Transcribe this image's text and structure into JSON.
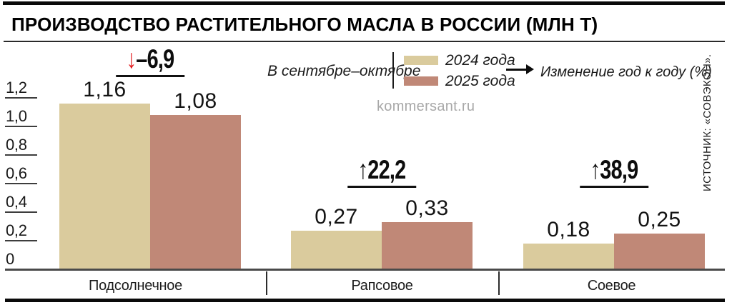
{
  "title": "ПРОИЗВОДСТВО РАСТИТЕЛЬНОГО МАСЛА В РОССИИ (МЛН Т)",
  "watermark": "kommersant.ru",
  "source": "ИСТОЧНИК: «СОВЭКОН».",
  "legend": {
    "period": "В сентябре–октябре",
    "series": [
      {
        "label": "2024 года",
        "color": "#dacb9d"
      },
      {
        "label": "2025 года",
        "color": "#c08877"
      }
    ],
    "change_note": "Изменение год к году (%)"
  },
  "chart_data": {
    "type": "bar",
    "title": "ПРОИЗВОДСТВО РАСТИТЕЛЬНОГО МАСЛА В РОССИИ (МЛН Т)",
    "subtitle": "В сентябре–октябре",
    "unit": "млн т",
    "categories": [
      "Подсолнечное",
      "Рапсовое",
      "Соевое"
    ],
    "series": [
      {
        "name": "2024 года",
        "color": "#dacb9d",
        "values": [
          1.16,
          0.27,
          0.18
        ],
        "labels": [
          "1,16",
          "0,27",
          "0,18"
        ]
      },
      {
        "name": "2025 года",
        "color": "#c08877",
        "values": [
          1.08,
          0.33,
          0.25
        ],
        "labels": [
          "1,08",
          "0,33",
          "0,25"
        ]
      }
    ],
    "yoy_change_percent": [
      {
        "value": -6.9,
        "label": "–6,9",
        "arrow": "↓",
        "arrow_color": "#e31b1e"
      },
      {
        "value": 22.2,
        "label": "22,2",
        "arrow": "↑",
        "arrow_color": "#0d0d0d"
      },
      {
        "value": 38.9,
        "label": "38,9",
        "arrow": "↑",
        "arrow_color": "#0d0d0d"
      }
    ],
    "y_ticks": [
      "0",
      "0,2",
      "0,4",
      "0,6",
      "0,8",
      "1,0",
      "1,2"
    ],
    "ylim": [
      0,
      1.2
    ],
    "grid": false,
    "legend_position": "top"
  }
}
